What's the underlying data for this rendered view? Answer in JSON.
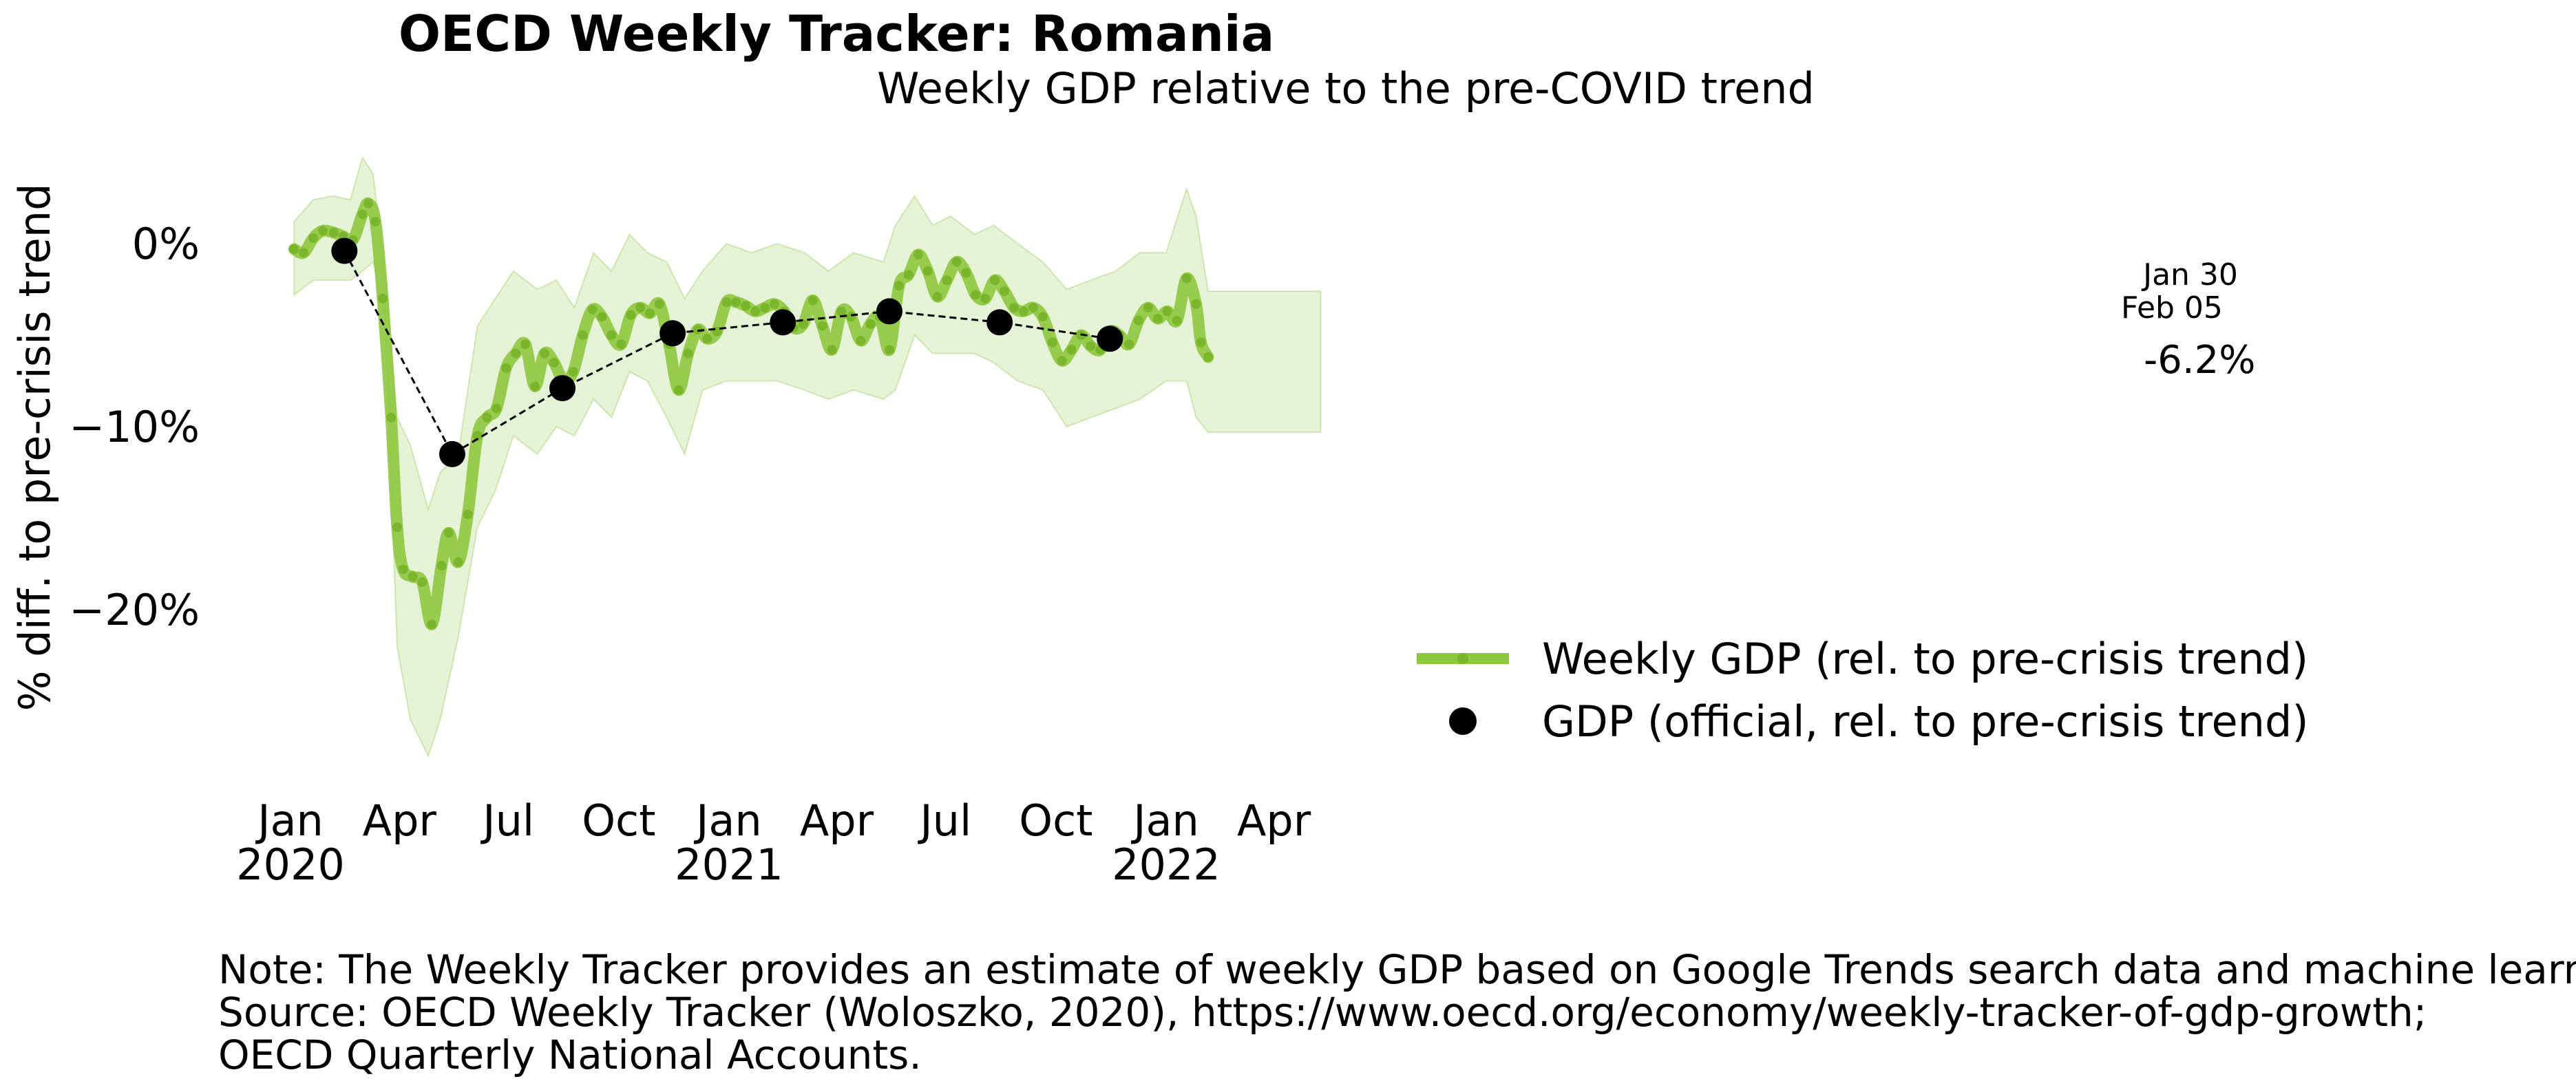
{
  "chart_data": {
    "type": "line",
    "title": "OECD Weekly Tracker: Romania",
    "subtitle": "Weekly GDP relative to the pre-COVID trend",
    "ylabel": "% diff. to pre-crisis trend",
    "xlabel": "",
    "x_range": [
      "2019-12-20",
      "2022-05-15"
    ],
    "ylim": [
      -30,
      5
    ],
    "grid": false,
    "legend_position": "lower-right",
    "y_ticks": [
      {
        "value": 0,
        "label": "0%"
      },
      {
        "value": -10,
        "label": "−10%"
      },
      {
        "value": -20,
        "label": "−20%"
      }
    ],
    "x_ticks": [
      {
        "date": "2020-01-01",
        "line1": "Jan",
        "line2": "2020"
      },
      {
        "date": "2020-04-01",
        "line1": "Apr",
        "line2": ""
      },
      {
        "date": "2020-07-01",
        "line1": "Jul",
        "line2": ""
      },
      {
        "date": "2020-10-01",
        "line1": "Oct",
        "line2": ""
      },
      {
        "date": "2021-01-01",
        "line1": "Jan",
        "line2": "2021"
      },
      {
        "date": "2021-04-01",
        "line1": "Apr",
        "line2": ""
      },
      {
        "date": "2021-07-01",
        "line1": "Jul",
        "line2": ""
      },
      {
        "date": "2021-10-01",
        "line1": "Oct",
        "line2": ""
      },
      {
        "date": "2022-01-01",
        "line1": "Jan",
        "line2": "2022"
      },
      {
        "date": "2022-04-01",
        "line1": "Apr",
        "line2": ""
      }
    ],
    "series": [
      {
        "name": "Weekly GDP (rel. to pre-crisis trend)",
        "style": "thick-line",
        "color": "#8dc63f",
        "points": [
          [
            "2020-01-04",
            -0.3
          ],
          [
            "2020-01-12",
            -0.5
          ],
          [
            "2020-01-20",
            0.3
          ],
          [
            "2020-01-28",
            0.7
          ],
          [
            "2020-02-06",
            0.6
          ],
          [
            "2020-02-14",
            0.4
          ],
          [
            "2020-02-22",
            0.2
          ],
          [
            "2020-03-01",
            1.6
          ],
          [
            "2020-03-06",
            2.2
          ],
          [
            "2020-03-12",
            1.2
          ],
          [
            "2020-03-18",
            -3.0
          ],
          [
            "2020-03-25",
            -9.5
          ],
          [
            "2020-03-30",
            -15.5
          ],
          [
            "2020-04-04",
            -17.8
          ],
          [
            "2020-04-12",
            -18.2
          ],
          [
            "2020-04-20",
            -18.5
          ],
          [
            "2020-04-28",
            -20.8
          ],
          [
            "2020-05-06",
            -17.6
          ],
          [
            "2020-05-12",
            -15.8
          ],
          [
            "2020-05-20",
            -17.4
          ],
          [
            "2020-05-28",
            -14.8
          ],
          [
            "2020-06-05",
            -10.5
          ],
          [
            "2020-06-13",
            -9.5
          ],
          [
            "2020-06-21",
            -9.0
          ],
          [
            "2020-06-29",
            -6.8
          ],
          [
            "2020-07-07",
            -6.0
          ],
          [
            "2020-07-15",
            -5.5
          ],
          [
            "2020-07-23",
            -7.8
          ],
          [
            "2020-07-31",
            -6.0
          ],
          [
            "2020-08-08",
            -6.5
          ],
          [
            "2020-08-16",
            -7.5
          ],
          [
            "2020-08-24",
            -7.0
          ],
          [
            "2020-09-01",
            -5.0
          ],
          [
            "2020-09-09",
            -3.6
          ],
          [
            "2020-09-17",
            -4.0
          ],
          [
            "2020-09-25",
            -5.0
          ],
          [
            "2020-10-03",
            -5.5
          ],
          [
            "2020-10-11",
            -3.9
          ],
          [
            "2020-10-19",
            -3.5
          ],
          [
            "2020-10-27",
            -3.8
          ],
          [
            "2020-11-04",
            -3.3
          ],
          [
            "2020-11-12",
            -5.5
          ],
          [
            "2020-11-20",
            -8.0
          ],
          [
            "2020-11-28",
            -6.0
          ],
          [
            "2020-12-06",
            -4.7
          ],
          [
            "2020-12-14",
            -5.2
          ],
          [
            "2020-12-22",
            -4.8
          ],
          [
            "2020-12-30",
            -3.2
          ],
          [
            "2021-01-07",
            -3.2
          ],
          [
            "2021-01-15",
            -3.4
          ],
          [
            "2021-01-23",
            -3.7
          ],
          [
            "2021-01-31",
            -3.5
          ],
          [
            "2021-02-08",
            -3.3
          ],
          [
            "2021-02-16",
            -3.7
          ],
          [
            "2021-02-24",
            -4.6
          ],
          [
            "2021-03-04",
            -4.4
          ],
          [
            "2021-03-12",
            -3.1
          ],
          [
            "2021-03-20",
            -4.5
          ],
          [
            "2021-03-28",
            -5.8
          ],
          [
            "2021-04-05",
            -3.7
          ],
          [
            "2021-04-13",
            -4.0
          ],
          [
            "2021-04-21",
            -5.3
          ],
          [
            "2021-04-29",
            -4.4
          ],
          [
            "2021-05-07",
            -4.0
          ],
          [
            "2021-05-15",
            -5.8
          ],
          [
            "2021-05-23",
            -2.3
          ],
          [
            "2021-05-31",
            -1.7
          ],
          [
            "2021-06-08",
            -0.6
          ],
          [
            "2021-06-16",
            -1.5
          ],
          [
            "2021-06-24",
            -2.9
          ],
          [
            "2021-07-02",
            -2.0
          ],
          [
            "2021-07-10",
            -1.0
          ],
          [
            "2021-07-18",
            -1.6
          ],
          [
            "2021-07-26",
            -2.8
          ],
          [
            "2021-08-03",
            -3.0
          ],
          [
            "2021-08-11",
            -2.0
          ],
          [
            "2021-08-19",
            -2.6
          ],
          [
            "2021-08-27",
            -3.5
          ],
          [
            "2021-09-04",
            -3.7
          ],
          [
            "2021-09-12",
            -3.5
          ],
          [
            "2021-09-20",
            -4.0
          ],
          [
            "2021-09-28",
            -5.4
          ],
          [
            "2021-10-06",
            -6.4
          ],
          [
            "2021-10-14",
            -5.8
          ],
          [
            "2021-10-22",
            -5.0
          ],
          [
            "2021-10-30",
            -5.6
          ],
          [
            "2021-11-07",
            -5.8
          ],
          [
            "2021-11-15",
            -4.8
          ],
          [
            "2021-11-23",
            -5.0
          ],
          [
            "2021-12-01",
            -5.5
          ],
          [
            "2021-12-09",
            -4.2
          ],
          [
            "2021-12-17",
            -3.5
          ],
          [
            "2021-12-25",
            -4.1
          ],
          [
            "2022-01-02",
            -3.7
          ],
          [
            "2022-01-10",
            -4.2
          ],
          [
            "2022-01-18",
            -1.9
          ],
          [
            "2022-01-26",
            -3.3
          ],
          [
            "2022-01-30",
            -5.4
          ],
          [
            "2022-02-05",
            -6.2
          ]
        ]
      },
      {
        "name": "GDP (official, rel. to pre-crisis trend)",
        "style": "markers",
        "color": "#000000",
        "points": [
          [
            "2020-02-15",
            -0.4
          ],
          [
            "2020-05-15",
            -11.5
          ],
          [
            "2020-08-15",
            -7.9
          ],
          [
            "2020-11-15",
            -4.9
          ],
          [
            "2021-02-15",
            -4.3
          ],
          [
            "2021-05-15",
            -3.7
          ],
          [
            "2021-08-15",
            -4.3
          ],
          [
            "2021-11-15",
            -5.2
          ]
        ]
      }
    ],
    "confidence_band": {
      "color": "#8dc63f",
      "upper": [
        [
          "2020-01-04",
          1.2
        ],
        [
          "2020-01-20",
          2.4
        ],
        [
          "2020-02-05",
          2.6
        ],
        [
          "2020-02-20",
          2.4
        ],
        [
          "2020-03-01",
          4.7
        ],
        [
          "2020-03-10",
          3.8
        ],
        [
          "2020-03-20",
          -2.0
        ],
        [
          "2020-03-30",
          -9.5
        ],
        [
          "2020-04-10",
          -11.0
        ],
        [
          "2020-04-25",
          -14.5
        ],
        [
          "2020-05-05",
          -12.5
        ],
        [
          "2020-05-20",
          -11.5
        ],
        [
          "2020-06-05",
          -4.5
        ],
        [
          "2020-06-20",
          -3.0
        ],
        [
          "2020-07-05",
          -1.5
        ],
        [
          "2020-07-25",
          -2.5
        ],
        [
          "2020-08-10",
          -2.0
        ],
        [
          "2020-08-25",
          -3.5
        ],
        [
          "2020-09-10",
          -0.5
        ],
        [
          "2020-09-25",
          -1.5
        ],
        [
          "2020-10-10",
          0.5
        ],
        [
          "2020-10-25",
          -0.5
        ],
        [
          "2020-11-10",
          -1.0
        ],
        [
          "2020-11-25",
          -3.0
        ],
        [
          "2020-12-10",
          -1.5
        ],
        [
          "2020-12-30",
          0.0
        ],
        [
          "2021-01-20",
          -0.5
        ],
        [
          "2021-02-10",
          0.0
        ],
        [
          "2021-03-05",
          -0.5
        ],
        [
          "2021-03-25",
          -1.5
        ],
        [
          "2021-04-15",
          -0.5
        ],
        [
          "2021-05-10",
          -1.0
        ],
        [
          "2021-05-20",
          1.0
        ],
        [
          "2021-06-05",
          2.6
        ],
        [
          "2021-06-20",
          1.0
        ],
        [
          "2021-07-05",
          1.5
        ],
        [
          "2021-07-25",
          0.5
        ],
        [
          "2021-08-10",
          1.0
        ],
        [
          "2021-08-30",
          0.0
        ],
        [
          "2021-09-20",
          -1.0
        ],
        [
          "2021-10-10",
          -2.5
        ],
        [
          "2021-10-30",
          -2.0
        ],
        [
          "2021-11-20",
          -1.5
        ],
        [
          "2021-12-10",
          -0.5
        ],
        [
          "2022-01-01",
          -0.5
        ],
        [
          "2022-01-18",
          3.0
        ],
        [
          "2022-01-26",
          1.5
        ],
        [
          "2022-02-05",
          -2.6
        ],
        [
          "2022-05-10",
          -2.6
        ]
      ],
      "lower": [
        [
          "2022-05-10",
          -10.3
        ],
        [
          "2022-02-05",
          -10.3
        ],
        [
          "2022-01-26",
          -9.5
        ],
        [
          "2022-01-18",
          -7.5
        ],
        [
          "2022-01-01",
          -7.5
        ],
        [
          "2021-12-10",
          -8.5
        ],
        [
          "2021-11-20",
          -9.0
        ],
        [
          "2021-10-30",
          -9.5
        ],
        [
          "2021-10-10",
          -10.0
        ],
        [
          "2021-09-20",
          -8.0
        ],
        [
          "2021-08-30",
          -7.5
        ],
        [
          "2021-08-10",
          -6.5
        ],
        [
          "2021-07-25",
          -6.0
        ],
        [
          "2021-07-05",
          -6.0
        ],
        [
          "2021-06-20",
          -6.0
        ],
        [
          "2021-06-05",
          -5.0
        ],
        [
          "2021-05-20",
          -8.0
        ],
        [
          "2021-05-10",
          -8.5
        ],
        [
          "2021-04-15",
          -8.0
        ],
        [
          "2021-03-25",
          -8.5
        ],
        [
          "2021-03-05",
          -8.0
        ],
        [
          "2021-02-10",
          -7.5
        ],
        [
          "2021-01-20",
          -7.5
        ],
        [
          "2020-12-30",
          -7.5
        ],
        [
          "2020-12-10",
          -8.0
        ],
        [
          "2020-11-25",
          -11.5
        ],
        [
          "2020-11-10",
          -9.5
        ],
        [
          "2020-10-25",
          -7.5
        ],
        [
          "2020-10-10",
          -7.0
        ],
        [
          "2020-09-25",
          -9.5
        ],
        [
          "2020-09-10",
          -8.5
        ],
        [
          "2020-08-25",
          -10.5
        ],
        [
          "2020-08-10",
          -10.0
        ],
        [
          "2020-07-25",
          -11.5
        ],
        [
          "2020-07-05",
          -10.5
        ],
        [
          "2020-06-20",
          -13.5
        ],
        [
          "2020-06-05",
          -15.5
        ],
        [
          "2020-05-20",
          -21.5
        ],
        [
          "2020-05-05",
          -26.0
        ],
        [
          "2020-04-25",
          -28.0
        ],
        [
          "2020-04-10",
          -26.0
        ],
        [
          "2020-03-30",
          -22.0
        ],
        [
          "2020-03-20",
          -4.0
        ],
        [
          "2020-03-10",
          -1.0
        ],
        [
          "2020-03-01",
          -1.5
        ],
        [
          "2020-02-20",
          -2.0
        ],
        [
          "2020-02-05",
          -2.0
        ],
        [
          "2020-01-20",
          -2.0
        ],
        [
          "2020-01-04",
          -2.8
        ]
      ]
    },
    "annotations": [
      {
        "text": "Jan 30",
        "kind": "date"
      },
      {
        "text": "Feb 05",
        "kind": "date"
      },
      {
        "text": "-6.2%",
        "kind": "value"
      }
    ],
    "notes": [
      "Note: The Weekly Tracker provides an estimate of weekly GDP based on Google Trends search data and machine learning.",
      "Source: OECD Weekly Tracker (Woloszko, 2020), https://www.oecd.org/economy/weekly-tracker-of-gdp-growth;",
      "OECD Quarterly National Accounts."
    ]
  }
}
